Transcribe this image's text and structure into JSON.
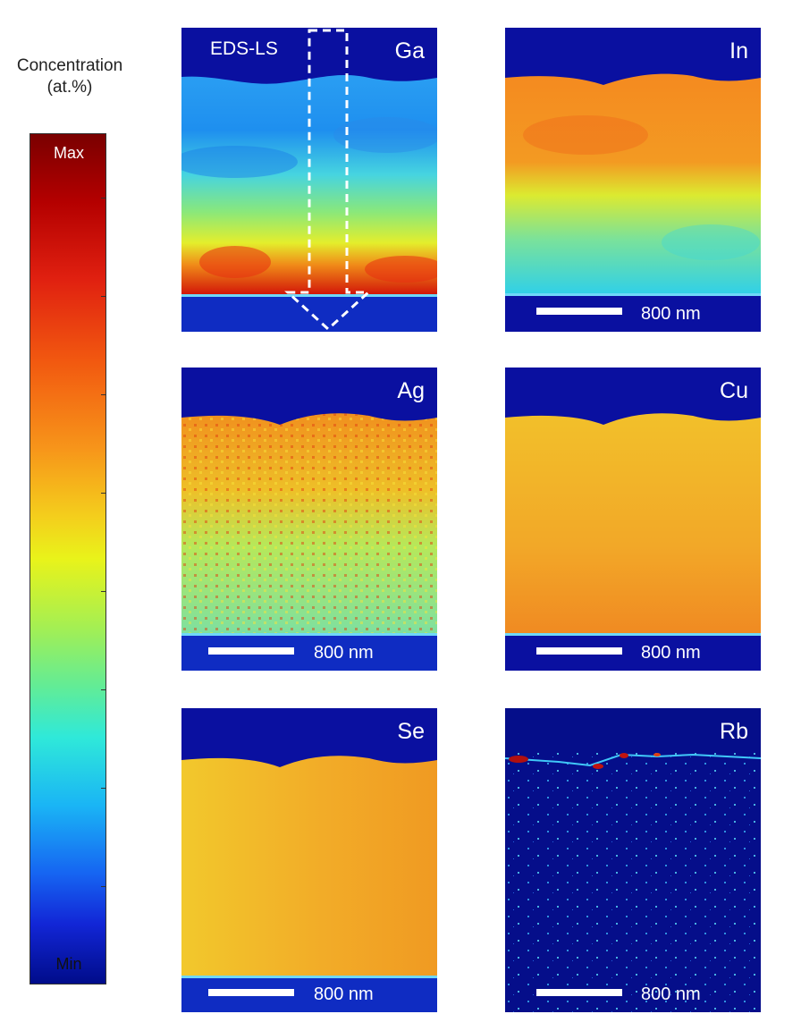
{
  "colorbar": {
    "title_line1": "Concentration",
    "title_line2": "(at.%)",
    "max_label": "Max",
    "min_label": "Min"
  },
  "panels": {
    "ga": {
      "element": "Ga",
      "line_scan_label": "EDS-LS"
    },
    "in": {
      "element": "In",
      "scale_label": "800 nm"
    },
    "ag": {
      "element": "Ag",
      "scale_label": "800 nm"
    },
    "cu": {
      "element": "Cu",
      "scale_label": "800 nm"
    },
    "se": {
      "element": "Se",
      "scale_label": "800 nm"
    },
    "rb": {
      "element": "Rb",
      "scale_label": "800 nm"
    }
  },
  "colors": {
    "background_blue": "#0a10a0",
    "max": "#7a0000",
    "min": "#000c8a"
  }
}
